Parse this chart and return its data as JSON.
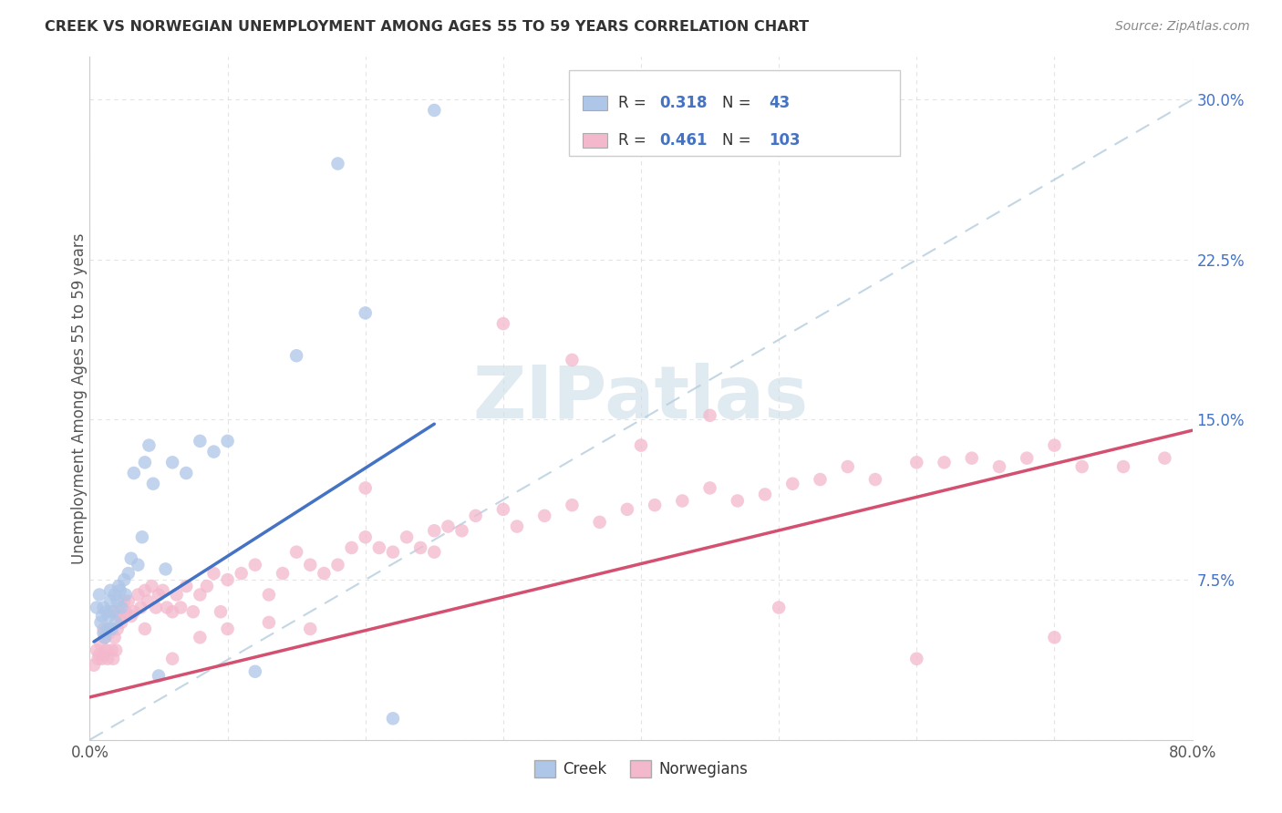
{
  "title": "CREEK VS NORWEGIAN UNEMPLOYMENT AMONG AGES 55 TO 59 YEARS CORRELATION CHART",
  "source": "Source: ZipAtlas.com",
  "ylabel": "Unemployment Among Ages 55 to 59 years",
  "xlim": [
    0.0,
    0.8
  ],
  "ylim": [
    0.0,
    0.32
  ],
  "xticks": [
    0.0,
    0.1,
    0.2,
    0.3,
    0.4,
    0.5,
    0.6,
    0.7,
    0.8
  ],
  "xticklabels": [
    "0.0%",
    "",
    "",
    "",
    "",
    "",
    "",
    "",
    "80.0%"
  ],
  "yticks": [
    0.0,
    0.075,
    0.15,
    0.225,
    0.3
  ],
  "yticklabels": [
    "",
    "7.5%",
    "15.0%",
    "22.5%",
    "30.0%"
  ],
  "creek_R": "0.318",
  "creek_N": "43",
  "norw_R": "0.461",
  "norw_N": "103",
  "creek_color": "#aec6e8",
  "creek_line_color": "#4472c4",
  "norw_color": "#f4b8cc",
  "norw_line_color": "#d45070",
  "ref_line_color": "#b8cfe0",
  "watermark_color": "#ccdde8",
  "background_color": "#ffffff",
  "grid_color": "#dddddd",
  "ytick_color": "#4472c4",
  "title_color": "#333333",
  "source_color": "#888888",
  "creek_x": [
    0.005,
    0.007,
    0.008,
    0.009,
    0.01,
    0.01,
    0.011,
    0.012,
    0.013,
    0.014,
    0.015,
    0.015,
    0.016,
    0.017,
    0.018,
    0.019,
    0.02,
    0.021,
    0.022,
    0.023,
    0.025,
    0.026,
    0.028,
    0.03,
    0.032,
    0.035,
    0.038,
    0.04,
    0.043,
    0.046,
    0.05,
    0.055,
    0.06,
    0.07,
    0.08,
    0.09,
    0.1,
    0.12,
    0.15,
    0.18,
    0.2,
    0.22,
    0.25
  ],
  "creek_y": [
    0.062,
    0.068,
    0.055,
    0.058,
    0.05,
    0.062,
    0.048,
    0.06,
    0.052,
    0.058,
    0.065,
    0.07,
    0.052,
    0.06,
    0.068,
    0.055,
    0.065,
    0.072,
    0.07,
    0.062,
    0.075,
    0.068,
    0.078,
    0.085,
    0.125,
    0.082,
    0.095,
    0.13,
    0.138,
    0.12,
    0.03,
    0.08,
    0.13,
    0.125,
    0.14,
    0.135,
    0.14,
    0.032,
    0.18,
    0.27,
    0.2,
    0.01,
    0.295
  ],
  "norw_x": [
    0.003,
    0.005,
    0.006,
    0.007,
    0.008,
    0.009,
    0.01,
    0.01,
    0.011,
    0.012,
    0.013,
    0.014,
    0.015,
    0.015,
    0.016,
    0.017,
    0.018,
    0.019,
    0.02,
    0.021,
    0.022,
    0.023,
    0.025,
    0.026,
    0.028,
    0.03,
    0.032,
    0.035,
    0.037,
    0.04,
    0.042,
    0.045,
    0.048,
    0.05,
    0.053,
    0.056,
    0.06,
    0.063,
    0.066,
    0.07,
    0.075,
    0.08,
    0.085,
    0.09,
    0.095,
    0.1,
    0.11,
    0.12,
    0.13,
    0.14,
    0.15,
    0.16,
    0.17,
    0.18,
    0.19,
    0.2,
    0.21,
    0.22,
    0.23,
    0.24,
    0.25,
    0.26,
    0.27,
    0.28,
    0.3,
    0.31,
    0.33,
    0.35,
    0.37,
    0.39,
    0.41,
    0.43,
    0.45,
    0.47,
    0.49,
    0.51,
    0.53,
    0.55,
    0.57,
    0.6,
    0.62,
    0.64,
    0.66,
    0.68,
    0.7,
    0.72,
    0.75,
    0.78,
    0.04,
    0.06,
    0.08,
    0.1,
    0.13,
    0.16,
    0.2,
    0.25,
    0.3,
    0.35,
    0.4,
    0.45,
    0.5,
    0.6,
    0.7
  ],
  "norw_y": [
    0.035,
    0.042,
    0.038,
    0.04,
    0.045,
    0.038,
    0.04,
    0.052,
    0.048,
    0.042,
    0.038,
    0.05,
    0.052,
    0.06,
    0.042,
    0.038,
    0.048,
    0.042,
    0.052,
    0.06,
    0.058,
    0.055,
    0.065,
    0.06,
    0.065,
    0.058,
    0.06,
    0.068,
    0.062,
    0.07,
    0.065,
    0.072,
    0.062,
    0.068,
    0.07,
    0.062,
    0.06,
    0.068,
    0.062,
    0.072,
    0.06,
    0.068,
    0.072,
    0.078,
    0.06,
    0.075,
    0.078,
    0.082,
    0.068,
    0.078,
    0.088,
    0.082,
    0.078,
    0.082,
    0.09,
    0.095,
    0.09,
    0.088,
    0.095,
    0.09,
    0.098,
    0.1,
    0.098,
    0.105,
    0.108,
    0.1,
    0.105,
    0.11,
    0.102,
    0.108,
    0.11,
    0.112,
    0.118,
    0.112,
    0.115,
    0.12,
    0.122,
    0.128,
    0.122,
    0.13,
    0.13,
    0.132,
    0.128,
    0.132,
    0.138,
    0.128,
    0.128,
    0.132,
    0.052,
    0.038,
    0.048,
    0.052,
    0.055,
    0.052,
    0.118,
    0.088,
    0.195,
    0.178,
    0.138,
    0.152,
    0.062,
    0.038,
    0.048
  ],
  "creek_trend_x": [
    0.003,
    0.25
  ],
  "creek_trend_y": [
    0.046,
    0.148
  ],
  "norw_trend_x": [
    0.0,
    0.8
  ],
  "norw_trend_y": [
    0.02,
    0.145
  ],
  "ref_line_x": [
    0.0,
    0.8
  ],
  "ref_line_y": [
    0.0,
    0.3
  ]
}
